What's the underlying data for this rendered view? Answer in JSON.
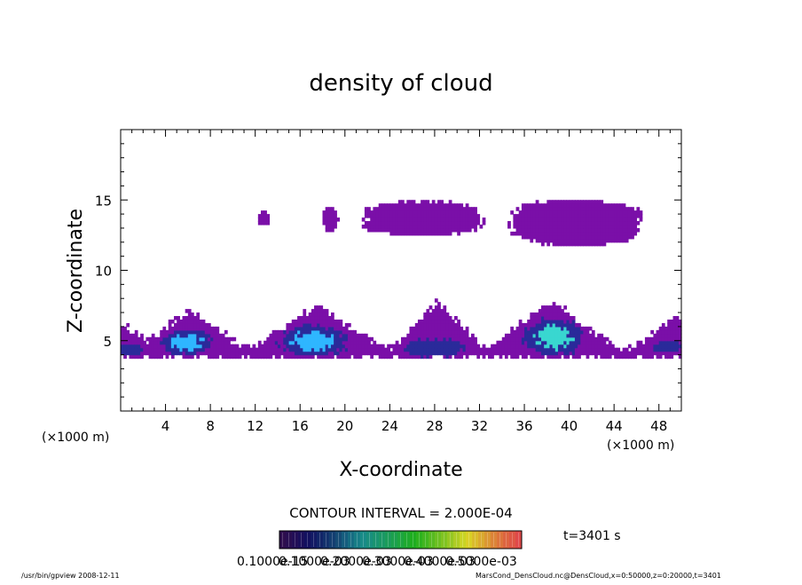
{
  "chart_data": {
    "type": "heatmap",
    "title": "density of cloud",
    "xlabel": "X-coordinate",
    "ylabel": "Z-coordinate",
    "x_unit": "(×1000 m)",
    "y_unit": "(×1000 m)",
    "xlim": [
      0,
      50
    ],
    "ylim": [
      0,
      20
    ],
    "x_ticks": [
      4,
      8,
      12,
      16,
      20,
      24,
      28,
      32,
      36,
      40,
      44,
      48
    ],
    "y_ticks": [
      5,
      10,
      15
    ],
    "contour_interval_label": "CONTOUR INTERVAL = 2.000E-04",
    "time_label": "t=3401 s",
    "colorbar_labels": [
      "0.1000e-15",
      "0.1000e-03",
      "0.2000e-03",
      "0.3000e-03",
      "0.4000e-03",
      "0.5000e-03"
    ],
    "colorbar_min": 0,
    "colorbar_max": 0.0006,
    "colors": {
      "low": "#7a0fa8",
      "mid": "#2a2a9a",
      "high": "#2fb6ff",
      "peak": "#39d7d0"
    },
    "upper_clouds": [
      {
        "x_center": 12.8,
        "x_halfwidth": 0.55,
        "z_center": 13.7,
        "z_halfwidth": 0.5
      },
      {
        "x_center": 18.7,
        "x_halfwidth": 0.65,
        "z_center": 13.6,
        "z_halfwidth": 0.85
      },
      {
        "x_center": 27.0,
        "x_halfwidth": 5.2,
        "z_center": 13.7,
        "z_halfwidth": 1.2
      },
      {
        "x_center": 40.7,
        "x_halfwidth": 5.7,
        "z_center": 13.4,
        "z_halfwidth": 1.6
      }
    ],
    "lower_layer": {
      "z_base": 3.8,
      "z_floor_between": 4.6
    },
    "lower_peaks": [
      {
        "x": -0.5,
        "z_top": 6.4,
        "halfwidth": 3.8
      },
      {
        "x": 6.2,
        "z_top": 7.2,
        "halfwidth": 4.5
      },
      {
        "x": 17.5,
        "z_top": 7.6,
        "halfwidth": 5.5
      },
      {
        "x": 28.3,
        "z_top": 7.8,
        "halfwidth": 3.8
      },
      {
        "x": 38.5,
        "z_top": 7.8,
        "halfwidth": 5.5
      },
      {
        "x": 49.5,
        "z_top": 6.8,
        "halfwidth": 3.6
      }
    ],
    "dense_cores": [
      {
        "x": 1.0,
        "z": 4.4,
        "rx": 1.2,
        "rz": 0.4,
        "level": "mid"
      },
      {
        "x": 5.9,
        "z": 4.9,
        "rx": 2.2,
        "rz": 0.9,
        "level": "high"
      },
      {
        "x": 17.2,
        "z": 5.0,
        "rx": 3.0,
        "rz": 1.1,
        "level": "high"
      },
      {
        "x": 28.0,
        "z": 4.5,
        "rx": 2.5,
        "rz": 0.7,
        "level": "mid"
      },
      {
        "x": 38.6,
        "z": 5.3,
        "rx": 2.6,
        "rz": 1.3,
        "level": "peak"
      },
      {
        "x": 48.8,
        "z": 4.6,
        "rx": 1.3,
        "rz": 0.4,
        "level": "mid"
      }
    ]
  },
  "footer": {
    "left": "/usr/bin/gpview  2008-12-11",
    "right": "MarsCond_DensCloud.nc@DensCloud,x=0:50000,z=0:20000,t=3401"
  }
}
